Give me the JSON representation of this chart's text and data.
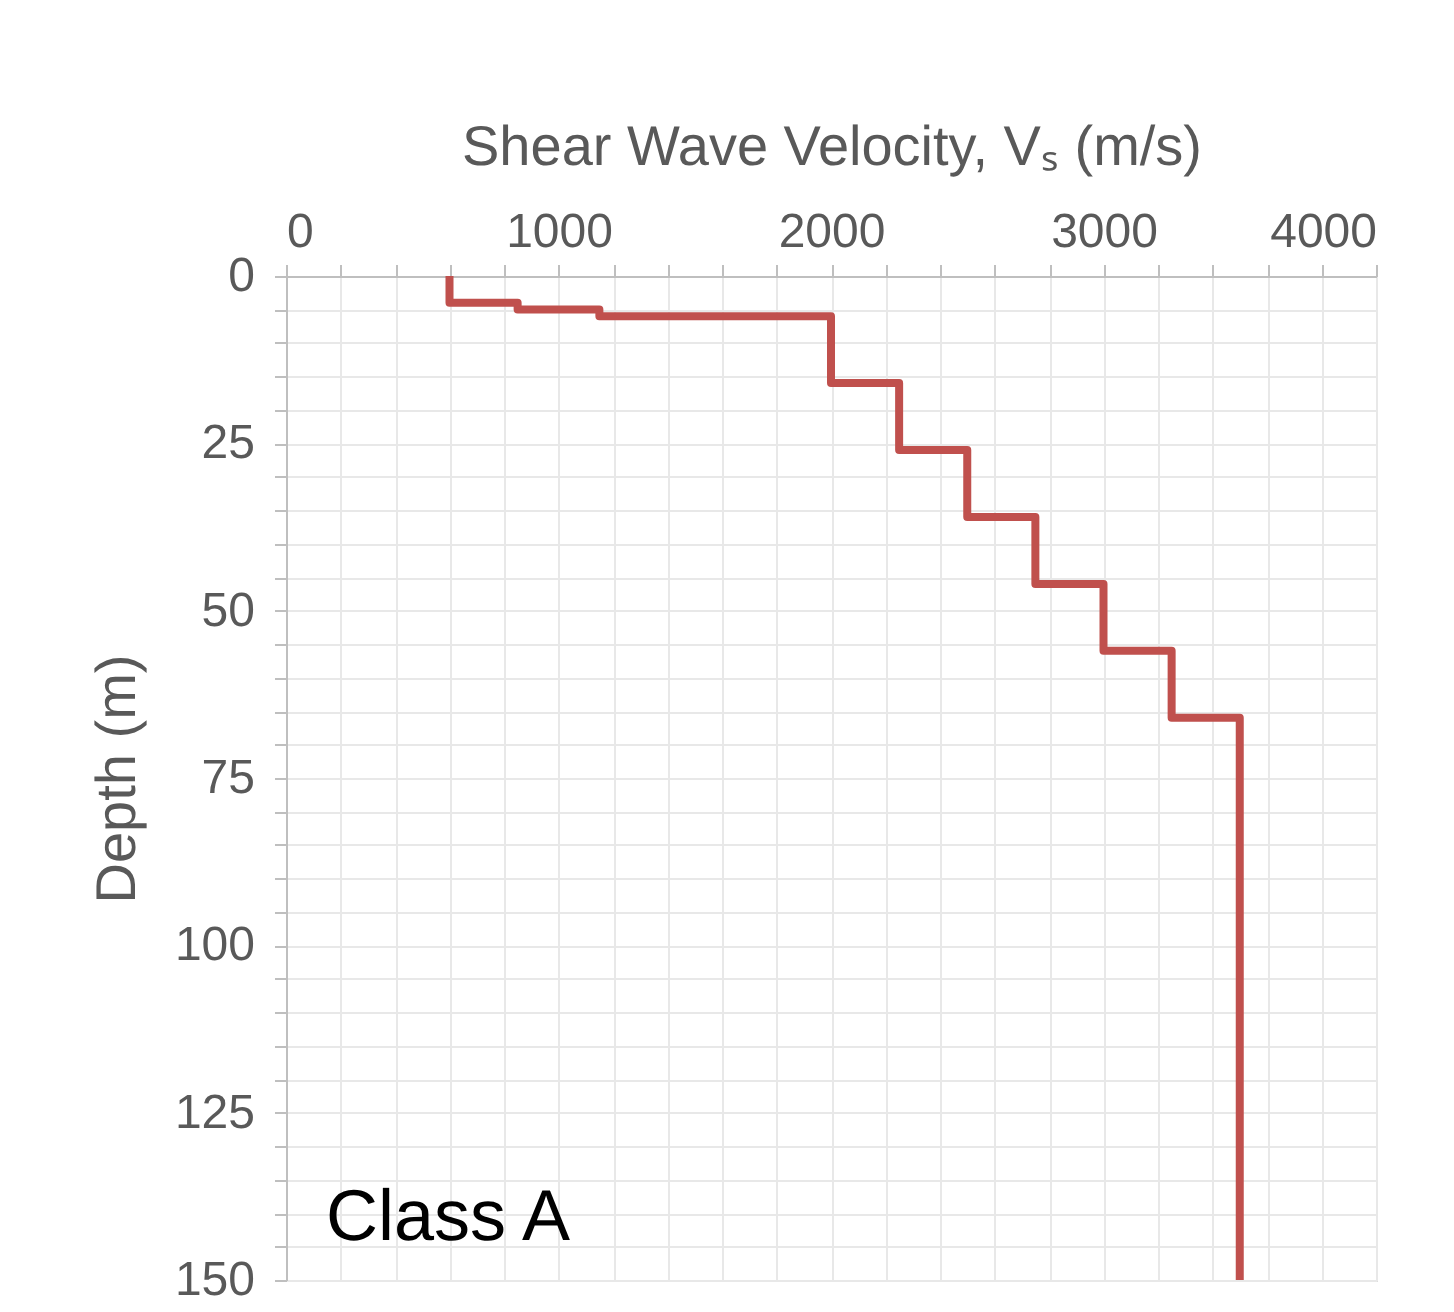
{
  "chart_data": {
    "type": "line",
    "xlabel": "Shear Wave Velocity, Vₛ (m/s)",
    "ylabel": "Depth (m)",
    "annotations": [
      "Class A"
    ],
    "series": [
      {
        "color": "#c0504d",
        "x": [
          600,
          600,
          850,
          850,
          1150,
          1150,
          2000,
          2000,
          2250,
          2250,
          2500,
          2500,
          2750,
          2750,
          3000,
          3000,
          3250,
          3250,
          3500,
          3500
        ],
        "values": [
          0,
          4,
          4,
          5,
          5,
          6,
          6,
          16,
          16,
          26,
          26,
          36,
          36,
          46,
          46,
          56,
          56,
          66,
          66,
          150
        ]
      }
    ],
    "xlim": [
      0,
      4000
    ],
    "xticks": [
      0,
      {
        "value": 200,
        "label": null
      },
      {
        "value": 400,
        "label": null
      },
      {
        "value": 600,
        "label": null
      },
      {
        "value": 800,
        "label": null
      },
      1000,
      {
        "value": 1200,
        "label": null
      },
      {
        "value": 1400,
        "label": null
      },
      {
        "value": 1600,
        "label": null
      },
      {
        "value": 1800,
        "label": null
      },
      2000,
      {
        "value": 2200,
        "label": null
      },
      {
        "value": 2400,
        "label": null
      },
      {
        "value": 2600,
        "label": null
      },
      {
        "value": 2800,
        "label": null
      },
      3000,
      {
        "value": 3200,
        "label": null
      },
      {
        "value": 3400,
        "label": null
      },
      {
        "value": 3600,
        "label": null
      },
      {
        "value": 3800,
        "label": null
      },
      4000
    ],
    "ylim": [
      150,
      0
    ],
    "yticks": [
      0,
      {
        "value": 5,
        "label": null
      },
      {
        "value": 10,
        "label": null
      },
      {
        "value": 15,
        "label": null
      },
      {
        "value": 20,
        "label": null
      },
      25,
      {
        "value": 30,
        "label": null
      },
      {
        "value": 35,
        "label": null
      },
      {
        "value": 40,
        "label": null
      },
      {
        "value": 45,
        "label": null
      },
      50,
      {
        "value": 55,
        "label": null
      },
      {
        "value": 60,
        "label": null
      },
      {
        "value": 65,
        "label": null
      },
      {
        "value": 70,
        "label": null
      },
      75,
      {
        "value": 80,
        "label": null
      },
      {
        "value": 85,
        "label": null
      },
      {
        "value": 90,
        "label": null
      },
      {
        "value": 95,
        "label": null
      },
      100,
      {
        "value": 105,
        "label": null
      },
      {
        "value": 110,
        "label": null
      },
      {
        "value": 115,
        "label": null
      },
      {
        "value": 120,
        "label": null
      },
      125,
      {
        "value": 130,
        "label": null
      },
      {
        "value": 135,
        "label": null
      },
      {
        "value": 140,
        "label": null
      },
      {
        "value": 145,
        "label": null
      },
      150
    ],
    "grid": true,
    "line_style": "solid",
    "marker": "none"
  }
}
